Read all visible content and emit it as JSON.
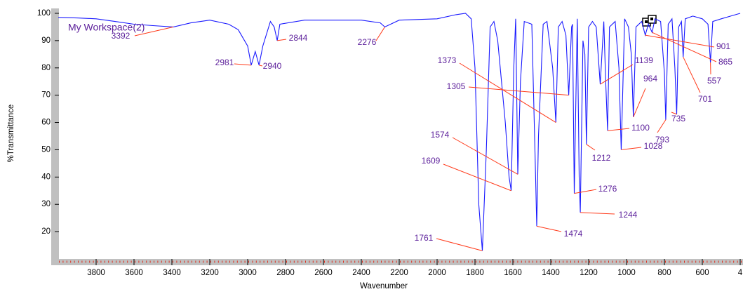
{
  "chart_data": {
    "type": "line",
    "xlabel": "Wavenumber",
    "ylabel": "%Transmittance",
    "xlim": [
      4000,
      400
    ],
    "ylim": [
      10,
      102
    ],
    "xticks": [
      3800,
      3600,
      3400,
      3200,
      3000,
      2800,
      2600,
      2400,
      2200,
      2000,
      1800,
      1600,
      1400,
      1200,
      1000,
      800,
      600,
      {
        "value": 400,
        "label": "4"
      }
    ],
    "yticks": [
      20,
      30,
      40,
      50,
      60,
      70,
      80,
      90,
      100
    ],
    "x": [
      4000,
      3900,
      3800,
      3700,
      3600,
      3500,
      3392,
      3300,
      3200,
      3100,
      3050,
      3000,
      2981,
      2960,
      2940,
      2920,
      2880,
      2860,
      2844,
      2830,
      2700,
      2500,
      2400,
      2300,
      2276,
      2200,
      2000,
      1900,
      1850,
      1820,
      1800,
      1780,
      1761,
      1740,
      1720,
      1700,
      1680,
      1640,
      1620,
      1609,
      1595,
      1585,
      1574,
      1560,
      1540,
      1500,
      1480,
      1474,
      1465,
      1440,
      1420,
      1390,
      1373,
      1360,
      1340,
      1320,
      1305,
      1290,
      1285,
      1276,
      1260,
      1250,
      1244,
      1230,
      1220,
      1212,
      1200,
      1180,
      1160,
      1139,
      1120,
      1110,
      1100,
      1090,
      1060,
      1040,
      1028,
      1010,
      990,
      975,
      964,
      950,
      920,
      901,
      885,
      865,
      850,
      820,
      800,
      793,
      780,
      760,
      745,
      735,
      725,
      710,
      701,
      690,
      650,
      600,
      570,
      557,
      545,
      500,
      450,
      400
    ],
    "series": [
      {
        "name": "My Workspace(2)",
        "color": "#1a1aff",
        "values": [
          98.5,
          98.3,
          98,
          97,
          96,
          95.5,
          95,
          96.5,
          97.5,
          96,
          94,
          88,
          81,
          86,
          81,
          88,
          97,
          95,
          90,
          96,
          97.5,
          97.5,
          97.5,
          96.5,
          95,
          97.5,
          98,
          99.5,
          100,
          98,
          80,
          30,
          13,
          50,
          95,
          97,
          90,
          60,
          40,
          35,
          80,
          98,
          41,
          75,
          97,
          96,
          40,
          22,
          55,
          96,
          97,
          80,
          60,
          95,
          97,
          92,
          70,
          95,
          96,
          34,
          98,
          40,
          27,
          90,
          85,
          52,
          95,
          97,
          95,
          74,
          97,
          75,
          57,
          95,
          97,
          80,
          50,
          98,
          95,
          85,
          62,
          95,
          97,
          92,
          96,
          93,
          98,
          97,
          78,
          61,
          96,
          98,
          80,
          63,
          95,
          97,
          84,
          98,
          99,
          98,
          96,
          82,
          97,
          98,
          99,
          100
        ]
      }
    ],
    "peaks": {
      "x": [
        3392,
        2981,
        2940,
        2844,
        2276,
        1761,
        1609,
        1574,
        1474,
        1373,
        1305,
        1276,
        1244,
        1212,
        1139,
        1100,
        1028,
        964,
        901,
        865,
        557,
        701,
        735,
        793
      ],
      "y": [
        95,
        81,
        81,
        90,
        95,
        13,
        35,
        41,
        22,
        60,
        70,
        34,
        27,
        52,
        74,
        57,
        50,
        62,
        92,
        93,
        82,
        84,
        63,
        61
      ]
    },
    "color": "#ff3a1a",
    "text_color": "#5b1e9a"
  }
}
